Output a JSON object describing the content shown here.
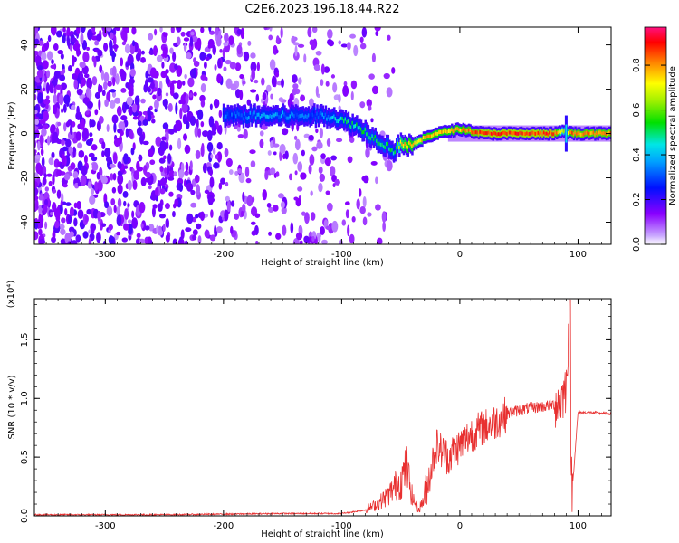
{
  "title": "C2E6.2023.196.18.44.R22",
  "chart_data": [
    {
      "type": "heatmap",
      "xlabel": "Height of straight line (km)",
      "ylabel": "Frequency (Hz)",
      "xlim": [
        -360,
        128
      ],
      "ylim": [
        -50,
        48
      ],
      "xticks": [
        -300,
        -200,
        -100,
        0,
        100
      ],
      "yticks": [
        -40,
        -20,
        0,
        20,
        40
      ],
      "colorbar": {
        "label": "Normalized spectral amplitude",
        "range": [
          0.0,
          0.97
        ],
        "ticks": [
          "0.0",
          "0.2",
          "0.4",
          "0.6",
          "0.8"
        ],
        "colormap": "rainbow (violet-blue-cyan-green-yellow-red)"
      },
      "ridge": {
        "x": [
          -200,
          -180,
          -160,
          -140,
          -120,
          -110,
          -100,
          -90,
          -80,
          -70,
          -60,
          -55,
          -50,
          -45,
          -40,
          -35,
          -30,
          -20,
          -10,
          0,
          10,
          20,
          40,
          60,
          80,
          88,
          95,
          110,
          128
        ],
        "frequency": [
          8,
          8,
          8,
          8,
          8,
          8,
          6,
          4,
          1,
          -3,
          -6,
          -8,
          -4,
          -5,
          -5,
          -4,
          -2,
          0,
          1,
          2,
          1,
          0,
          0,
          0,
          0,
          1,
          0,
          0,
          0
        ],
        "amplitude": [
          0.35,
          0.4,
          0.45,
          0.4,
          0.35,
          0.45,
          0.55,
          0.55,
          0.6,
          0.6,
          0.6,
          0.55,
          0.8,
          0.85,
          0.85,
          0.8,
          0.85,
          0.85,
          0.85,
          0.85,
          0.9,
          0.95,
          0.95,
          0.95,
          0.95,
          0.7,
          0.9,
          0.9,
          0.9
        ]
      }
    },
    {
      "type": "line",
      "xlabel": "Height of straight line (km)",
      "ylabel": "SNR (10 * v/v)",
      "y_multiplier": "(x10⁴)",
      "xlim": [
        -360,
        128
      ],
      "ylim": [
        0,
        1.85
      ],
      "xticks": [
        -300,
        -200,
        -100,
        0,
        100
      ],
      "yticks": [
        "0.0",
        "0.5",
        "1.0",
        "1.5"
      ],
      "color": "#e83030",
      "series": [
        {
          "x": [
            -360,
            -300,
            -250,
            -200,
            -150,
            -120,
            -100,
            -80,
            -70,
            -60,
            -55,
            -50,
            -45,
            -40,
            -35,
            -30,
            -20,
            -10,
            0,
            10,
            20,
            30,
            40,
            50,
            60,
            70,
            80,
            85,
            90,
            92,
            93,
            94,
            95,
            100,
            110,
            128
          ],
          "y": [
            0.01,
            0.01,
            0.01,
            0.015,
            0.02,
            0.02,
            0.02,
            0.05,
            0.1,
            0.18,
            0.25,
            0.3,
            0.4,
            0.15,
            0.05,
            0.15,
            0.6,
            0.5,
            0.6,
            0.7,
            0.75,
            0.8,
            0.87,
            0.9,
            0.92,
            0.93,
            0.95,
            0.97,
            1.1,
            1.6,
            1.85,
            0.6,
            0.2,
            0.88,
            0.88,
            0.87
          ]
        }
      ]
    }
  ]
}
